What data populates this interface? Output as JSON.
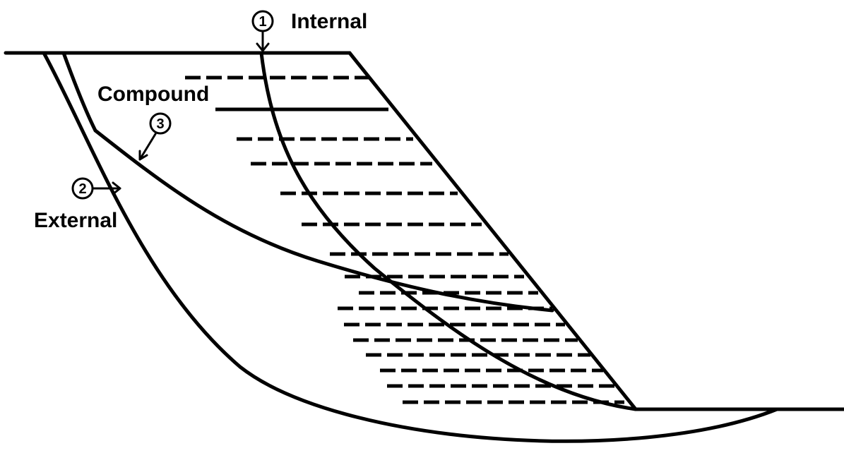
{
  "labels": {
    "internal": "Internal",
    "compound": "Compound",
    "external": "External"
  },
  "markers": {
    "internal": "1",
    "external": "2",
    "compound": "3"
  },
  "colors": {
    "stroke": "#000000",
    "background": "#ffffff"
  }
}
